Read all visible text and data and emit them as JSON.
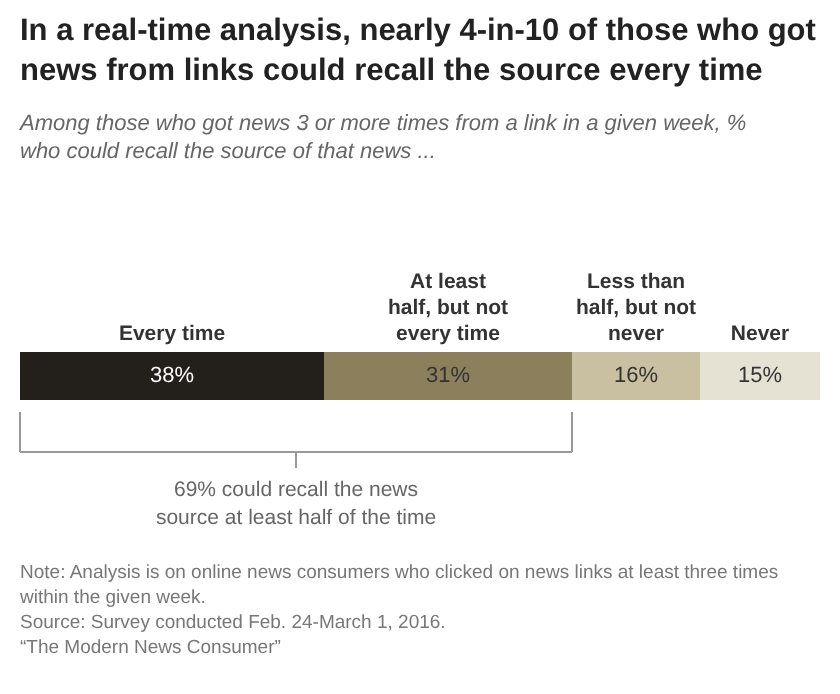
{
  "chart_data": {
    "type": "bar",
    "orientation": "horizontal",
    "stacked": true,
    "title": "In a real-time analysis, nearly 4-in-10 of those who got\nnews from links could recall the source every time",
    "subtitle": "Among those who got news 3 or more times from a link in a given week, %\nwho could recall the source of that news ...",
    "categories": [
      null
    ],
    "series": [
      {
        "name": "Every time",
        "color": "#231f1a",
        "values": [
          38
        ],
        "value_labels": [
          "38%"
        ]
      },
      {
        "name": "At least\nhalf, but not\nevery time",
        "color": "#8c7f5b",
        "values": [
          31
        ],
        "value_labels": [
          "31%"
        ]
      },
      {
        "name": "Less than\nhalf, but not\nnever",
        "color": "#c9c0a1",
        "values": [
          16
        ],
        "value_labels": [
          "16%"
        ]
      },
      {
        "name": "Never",
        "color": "#e6e2d3",
        "values": [
          15
        ],
        "value_labels": [
          "15%"
        ]
      }
    ],
    "annotations": [
      "69% could recall the news\nsource at least half of the time",
      "Note: Analysis is on online news consumers who clicked on news links at least three times\nwithin the given week.",
      "Source: Survey conducted Feb. 24-March 1, 2016.",
      "“The Modern News Consumer”"
    ]
  }
}
